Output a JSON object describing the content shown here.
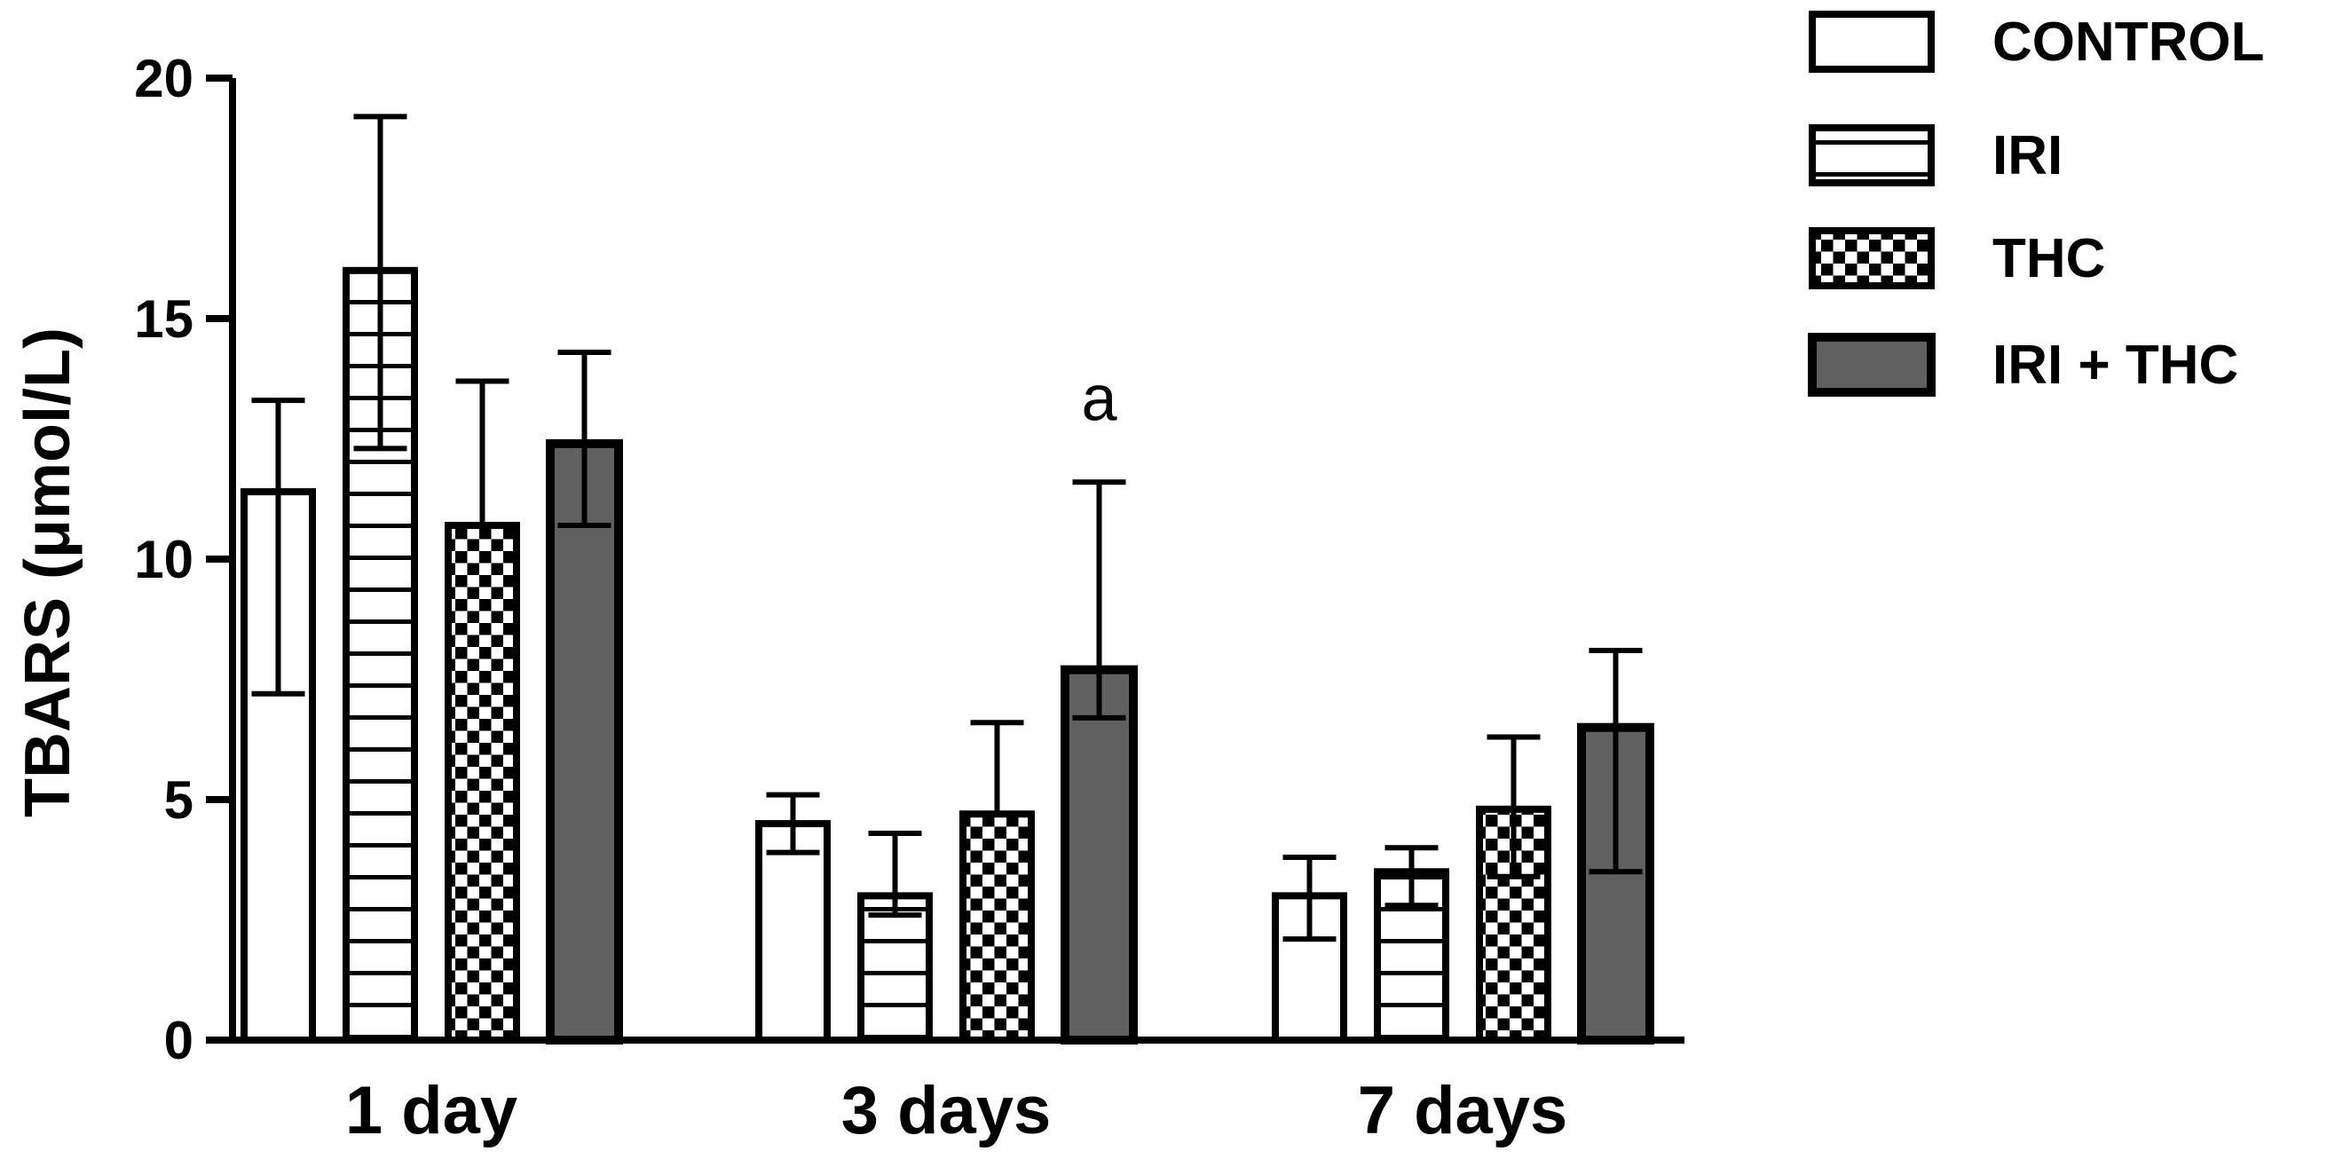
{
  "chart_data": {
    "type": "bar",
    "title": "",
    "xlabel": "",
    "ylabel": "TBARS (μmol/L)",
    "ylim": [
      0,
      20
    ],
    "yticks": [
      0,
      5,
      10,
      15,
      20
    ],
    "grid": false,
    "legend_position": "top-right",
    "categories": [
      "1 day",
      "3 days",
      "7 days"
    ],
    "series": [
      {
        "name": "CONTROL",
        "pattern": "none",
        "fill": "#ffffff",
        "values": [
          11.4,
          4.5,
          3.0
        ],
        "error": [
          [
            7.2,
            13.3
          ],
          [
            3.9,
            5.1
          ],
          [
            2.1,
            3.8
          ]
        ]
      },
      {
        "name": "IRI",
        "pattern": "horizontal-lines",
        "fill": "#ffffff",
        "values": [
          16.0,
          3.0,
          3.5
        ],
        "error": [
          [
            12.3,
            19.2
          ],
          [
            2.6,
            4.3
          ],
          [
            2.8,
            4.0
          ]
        ]
      },
      {
        "name": "THC",
        "pattern": "checkerboard",
        "fill": "#000000",
        "values": [
          10.7,
          4.7,
          4.8
        ],
        "error": [
          [
            10.7,
            13.7
          ],
          [
            4.7,
            6.6
          ],
          [
            3.4,
            6.3
          ]
        ]
      },
      {
        "name": "IRI + THC",
        "pattern": "solid",
        "fill": "#606060",
        "values": [
          12.4,
          7.7,
          6.5
        ],
        "error": [
          [
            10.7,
            14.3
          ],
          [
            6.7,
            11.6
          ],
          [
            3.5,
            8.1
          ]
        ]
      }
    ],
    "annotations": [
      {
        "text": "a",
        "category": "3 days",
        "series": "IRI + THC"
      }
    ]
  }
}
